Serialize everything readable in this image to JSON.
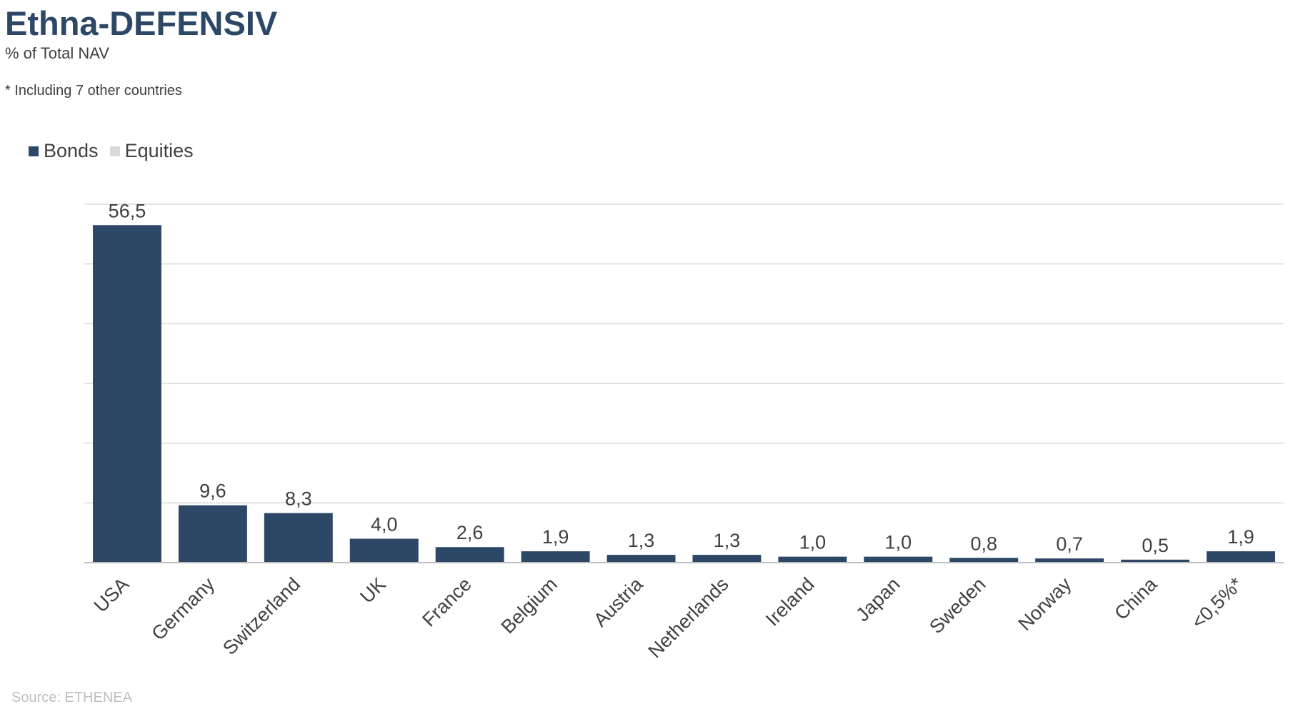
{
  "header": {
    "title": "Ethna-DEFENSIV",
    "subtitle": "% of Total NAV",
    "note": "* Including 7 other countries"
  },
  "footer": {
    "source": "Source: ETHENEA"
  },
  "colors": {
    "bonds": "#2d4866",
    "equities": "#d9d9d9",
    "grid": "#d9d9d9",
    "axis": "#bfbfbf",
    "text": "#404040"
  },
  "chart_data": {
    "type": "bar",
    "title": "Ethna-DEFENSIV",
    "subtitle": "% of Total NAV",
    "categories": [
      "USA",
      "Germany",
      "Switzerland",
      "UK",
      "France",
      "Belgium",
      "Austria",
      "Netherlands",
      "Ireland",
      "Japan",
      "Sweden",
      "Norway",
      "China",
      "<0,5%*"
    ],
    "series": [
      {
        "name": "Bonds",
        "values": [
          56.5,
          9.6,
          8.3,
          4.0,
          2.6,
          1.9,
          1.3,
          1.3,
          1.0,
          1.0,
          0.8,
          0.7,
          0.5,
          1.9
        ],
        "labels": [
          "56,5",
          "9,6",
          "8,3",
          "4,0",
          "2,6",
          "1,9",
          "1,3",
          "1,3",
          "1,0",
          "1,0",
          "0,8",
          "0,7",
          "0,5",
          "1,9"
        ]
      },
      {
        "name": "Equities",
        "values": [
          0,
          0,
          0,
          0,
          0,
          0,
          0,
          0,
          0,
          0,
          0,
          0,
          0,
          0
        ]
      }
    ],
    "ylim": [
      0,
      60
    ],
    "grid": true,
    "legend": "top-left"
  }
}
